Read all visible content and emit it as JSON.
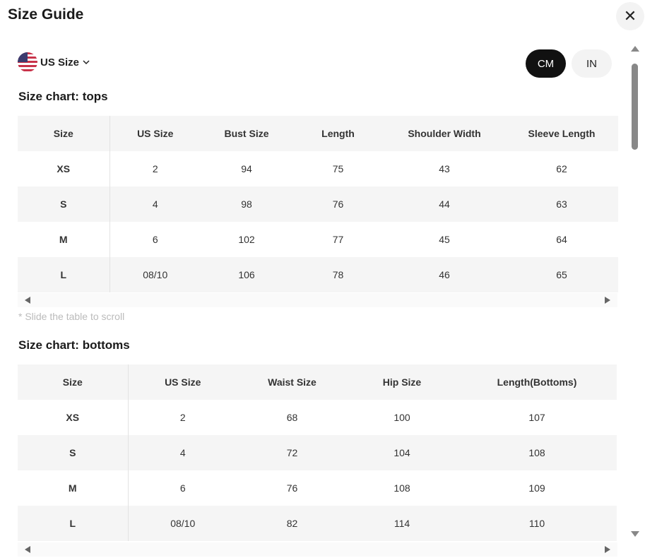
{
  "title": "Size Guide",
  "region": {
    "label": "US Size"
  },
  "units": {
    "cm": "CM",
    "in": "IN",
    "selected": "CM"
  },
  "tops": {
    "title": "Size chart: tops",
    "headers": [
      "Size",
      "US Size",
      "Bust Size",
      "Length",
      "Shoulder Width",
      "Sleeve Length"
    ],
    "rows": [
      [
        "XS",
        "2",
        "94",
        "75",
        "43",
        "62"
      ],
      [
        "S",
        "4",
        "98",
        "76",
        "44",
        "63"
      ],
      [
        "M",
        "6",
        "102",
        "77",
        "45",
        "64"
      ],
      [
        "L",
        "08/10",
        "106",
        "78",
        "46",
        "65"
      ]
    ]
  },
  "hint": "* Slide the table to scroll",
  "bottoms": {
    "title": "Size chart: bottoms",
    "headers": [
      "Size",
      "US Size",
      "Waist Size",
      "Hip Size",
      "Length(Bottoms)"
    ],
    "rows": [
      [
        "XS",
        "2",
        "68",
        "100",
        "107"
      ],
      [
        "S",
        "4",
        "72",
        "104",
        "108"
      ],
      [
        "M",
        "6",
        "76",
        "108",
        "109"
      ],
      [
        "L",
        "08/10",
        "82",
        "114",
        "110"
      ]
    ]
  }
}
